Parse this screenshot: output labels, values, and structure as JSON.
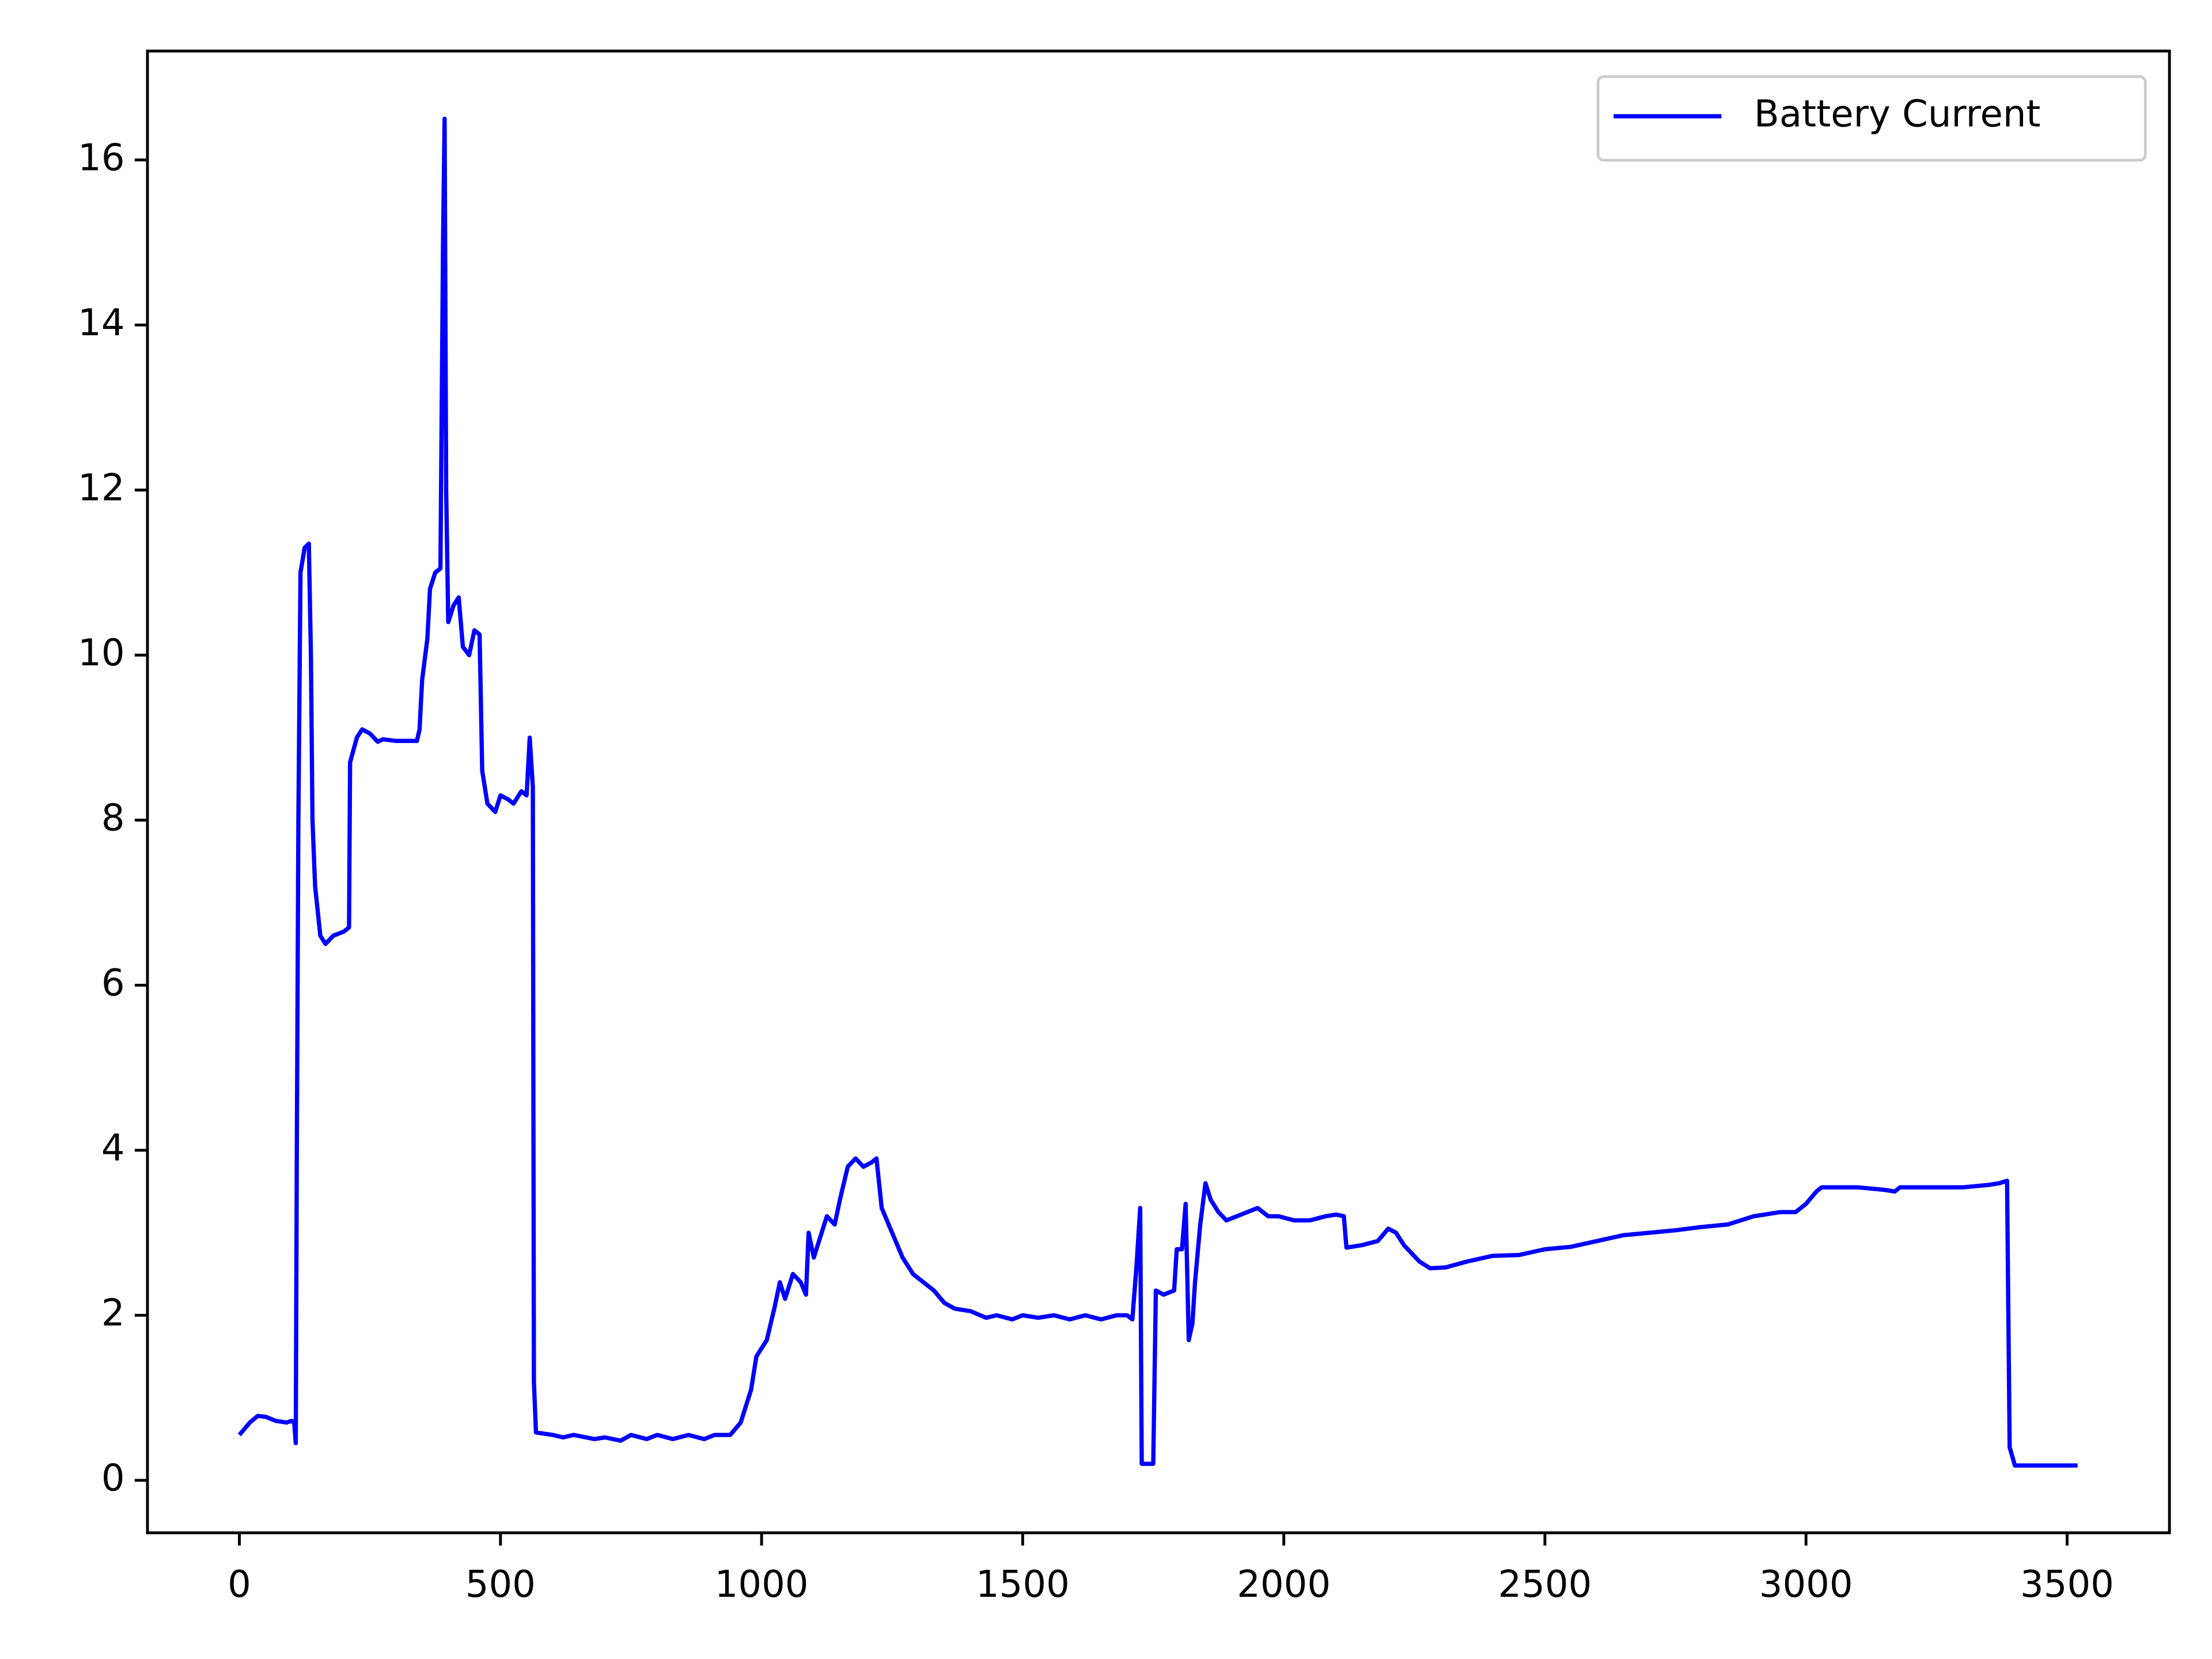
{
  "chart_data": {
    "type": "line",
    "x": [
      0,
      20,
      35,
      50,
      70,
      90,
      100,
      105,
      108,
      110,
      113,
      117,
      125,
      133,
      137,
      140,
      145,
      155,
      165,
      180,
      200,
      210,
      212,
      225,
      235,
      250,
      265,
      275,
      300,
      340,
      345,
      350,
      360,
      365,
      375,
      385,
      390,
      393,
      396,
      400,
      410,
      420,
      428,
      440,
      450,
      460,
      465,
      475,
      490,
      500,
      515,
      525,
      540,
      550,
      556,
      562,
      564,
      568,
      600,
      620,
      640,
      680,
      700,
      730,
      750,
      780,
      800,
      830,
      860,
      890,
      910,
      940,
      960,
      980,
      990,
      1000,
      1010,
      1025,
      1035,
      1045,
      1060,
      1075,
      1085,
      1090,
      1100,
      1115,
      1125,
      1140,
      1150,
      1165,
      1180,
      1195,
      1210,
      1220,
      1230,
      1250,
      1270,
      1290,
      1310,
      1330,
      1350,
      1370,
      1400,
      1430,
      1450,
      1480,
      1500,
      1530,
      1560,
      1590,
      1620,
      1650,
      1680,
      1700,
      1710,
      1718,
      1725,
      1728,
      1750,
      1755,
      1770,
      1790,
      1795,
      1805,
      1812,
      1818,
      1825,
      1830,
      1840,
      1850,
      1860,
      1875,
      1890,
      1910,
      1930,
      1950,
      1970,
      1990,
      2020,
      2050,
      2080,
      2100,
      2115,
      2120,
      2150,
      2180,
      2200,
      2215,
      2230,
      2260,
      2280,
      2310,
      2350,
      2400,
      2450,
      2500,
      2550,
      2600,
      2650,
      2700,
      2750,
      2800,
      2850,
      2900,
      2950,
      2980,
      3000,
      3020,
      3030,
      3100,
      3150,
      3170,
      3180,
      3250,
      3300,
      3350,
      3370,
      3385,
      3390,
      3400,
      3450,
      3520
    ],
    "series": [
      {
        "name": "Battery Current",
        "color": "#0000ff",
        "values": [
          0.55,
          0.7,
          0.78,
          0.77,
          0.72,
          0.7,
          0.72,
          0.7,
          0.45,
          4,
          8,
          11,
          11.3,
          11.35,
          10,
          8,
          7.2,
          6.6,
          6.5,
          6.6,
          6.65,
          6.7,
          8.7,
          9.0,
          9.1,
          9.05,
          8.95,
          8.98,
          8.96,
          8.96,
          9.1,
          9.7,
          10.2,
          10.8,
          11.0,
          11.05,
          15,
          16.5,
          12,
          10.4,
          10.6,
          10.7,
          10.1,
          10.0,
          10.3,
          10.25,
          8.6,
          8.2,
          8.1,
          8.3,
          8.25,
          8.2,
          8.35,
          8.3,
          9.0,
          8.4,
          1.2,
          0.58,
          0.55,
          0.52,
          0.55,
          0.5,
          0.52,
          0.48,
          0.55,
          0.5,
          0.55,
          0.5,
          0.55,
          0.5,
          0.55,
          0.55,
          0.7,
          1.1,
          1.5,
          1.6,
          1.7,
          2.1,
          2.4,
          2.2,
          2.5,
          2.4,
          2.25,
          3.0,
          2.7,
          3.0,
          3.2,
          3.1,
          3.4,
          3.8,
          3.9,
          3.8,
          3.85,
          3.9,
          3.3,
          3.0,
          2.7,
          2.5,
          2.4,
          2.3,
          2.15,
          2.08,
          2.05,
          1.97,
          2.0,
          1.95,
          2.0,
          1.97,
          2.0,
          1.95,
          2.0,
          1.95,
          2.0,
          2.0,
          1.95,
          2.6,
          3.3,
          0.2,
          0.2,
          2.3,
          2.25,
          2.3,
          2.8,
          2.8,
          3.35,
          1.7,
          1.9,
          2.4,
          3.1,
          3.6,
          3.4,
          3.25,
          3.15,
          3.2,
          3.25,
          3.3,
          3.2,
          3.2,
          3.15,
          3.15,
          3.2,
          3.22,
          3.2,
          2.82,
          2.85,
          2.9,
          3.05,
          3.0,
          2.85,
          2.65,
          2.57,
          2.58,
          2.65,
          2.72,
          2.73,
          2.8,
          2.83,
          2.9,
          2.97,
          3.0,
          3.03,
          3.07,
          3.1,
          3.2,
          3.25,
          3.25,
          3.35,
          3.5,
          3.55,
          3.55,
          3.52,
          3.5,
          3.55,
          3.55,
          3.55,
          3.58,
          3.6,
          3.63,
          0.4,
          0.18,
          0.18,
          0.18
        ]
      }
    ],
    "xlim": [
      -176,
      3696
    ],
    "ylim": [
      -0.636,
      17.32
    ],
    "xticks": [
      0,
      500,
      1000,
      1500,
      2000,
      2500,
      3000,
      3500
    ],
    "yticks": [
      0,
      2,
      4,
      6,
      8,
      10,
      12,
      14,
      16
    ],
    "legend": "upper right"
  }
}
